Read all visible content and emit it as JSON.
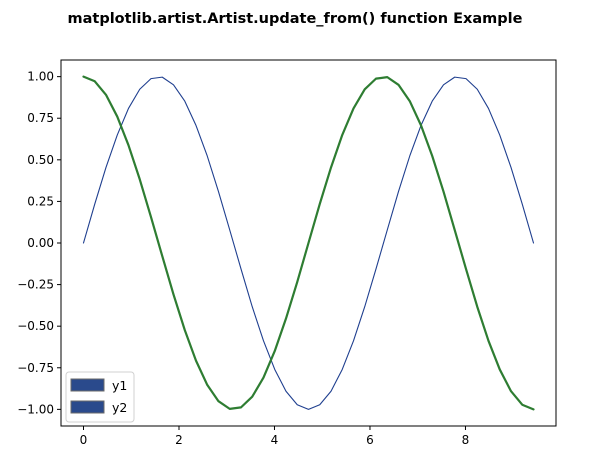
{
  "chart_data": {
    "type": "line",
    "title": "matplotlib.artist.Artist.update_from() function Example",
    "xlabel": "",
    "ylabel": "",
    "xlim": [
      -0.471,
      9.896
    ],
    "ylim": [
      -1.1,
      1.1
    ],
    "x_ticks": [
      0,
      2,
      4,
      6,
      8
    ],
    "y_ticks": [
      -1.0,
      -0.75,
      -0.5,
      -0.25,
      0.0,
      0.25,
      0.5,
      0.75,
      1.0
    ],
    "x_tick_labels": [
      "0",
      "2",
      "4",
      "6",
      "8"
    ],
    "y_tick_labels": [
      "−1.00",
      "−0.75",
      "−0.50",
      "−0.25",
      "0.00",
      "0.25",
      "0.50",
      "0.75",
      "1.00"
    ],
    "grid": false,
    "legend_position": "lower-left",
    "series": [
      {
        "name": "y1",
        "color": "#1f3f8f",
        "x": [
          0.0,
          0.236,
          0.471,
          0.707,
          0.942,
          1.178,
          1.414,
          1.649,
          1.885,
          2.121,
          2.356,
          2.592,
          2.827,
          3.063,
          3.299,
          3.534,
          3.77,
          4.006,
          4.241,
          4.477,
          4.712,
          4.948,
          5.184,
          5.419,
          5.655,
          5.89,
          6.126,
          6.362,
          6.597,
          6.833,
          7.069,
          7.304,
          7.54,
          7.775,
          8.011,
          8.247,
          8.482,
          8.718,
          8.954,
          9.189,
          9.425
        ],
        "values": [
          0.0,
          0.234,
          0.454,
          0.649,
          0.809,
          0.924,
          0.988,
          0.997,
          0.951,
          0.853,
          0.707,
          0.523,
          0.309,
          0.078,
          -0.156,
          -0.383,
          -0.588,
          -0.76,
          -0.891,
          -0.972,
          -1.0,
          -0.972,
          -0.891,
          -0.76,
          -0.588,
          -0.383,
          -0.156,
          0.078,
          0.309,
          0.523,
          0.707,
          0.853,
          0.951,
          0.997,
          0.988,
          0.924,
          0.809,
          0.649,
          0.454,
          0.234,
          0.0
        ]
      },
      {
        "name": "y2",
        "color": "#2e7d32",
        "x": [
          0.0,
          0.236,
          0.471,
          0.707,
          0.942,
          1.178,
          1.414,
          1.649,
          1.885,
          2.121,
          2.356,
          2.592,
          2.827,
          3.063,
          3.299,
          3.534,
          3.77,
          4.006,
          4.241,
          4.477,
          4.712,
          4.948,
          5.184,
          5.419,
          5.655,
          5.89,
          6.126,
          6.362,
          6.597,
          6.833,
          7.069,
          7.304,
          7.54,
          7.775,
          8.011,
          8.247,
          8.482,
          8.718,
          8.954,
          9.189,
          9.425
        ],
        "values": [
          1.0,
          0.972,
          0.891,
          0.76,
          0.588,
          0.383,
          0.156,
          -0.078,
          -0.309,
          -0.523,
          -0.707,
          -0.853,
          -0.951,
          -0.997,
          -0.988,
          -0.924,
          -0.809,
          -0.649,
          -0.454,
          -0.234,
          0.0,
          0.234,
          0.454,
          0.649,
          0.809,
          0.924,
          0.988,
          0.997,
          0.951,
          0.853,
          0.707,
          0.523,
          0.309,
          0.078,
          -0.156,
          -0.383,
          -0.588,
          -0.76,
          -0.891,
          -0.972,
          -1.0
        ]
      }
    ],
    "legend": {
      "entries": [
        {
          "label": "y1",
          "color": "#2a4a8c",
          "edge": "#6a6a6a"
        },
        {
          "label": "y2",
          "color": "#2a4a8c",
          "edge": "#6a6a6a"
        }
      ]
    }
  }
}
